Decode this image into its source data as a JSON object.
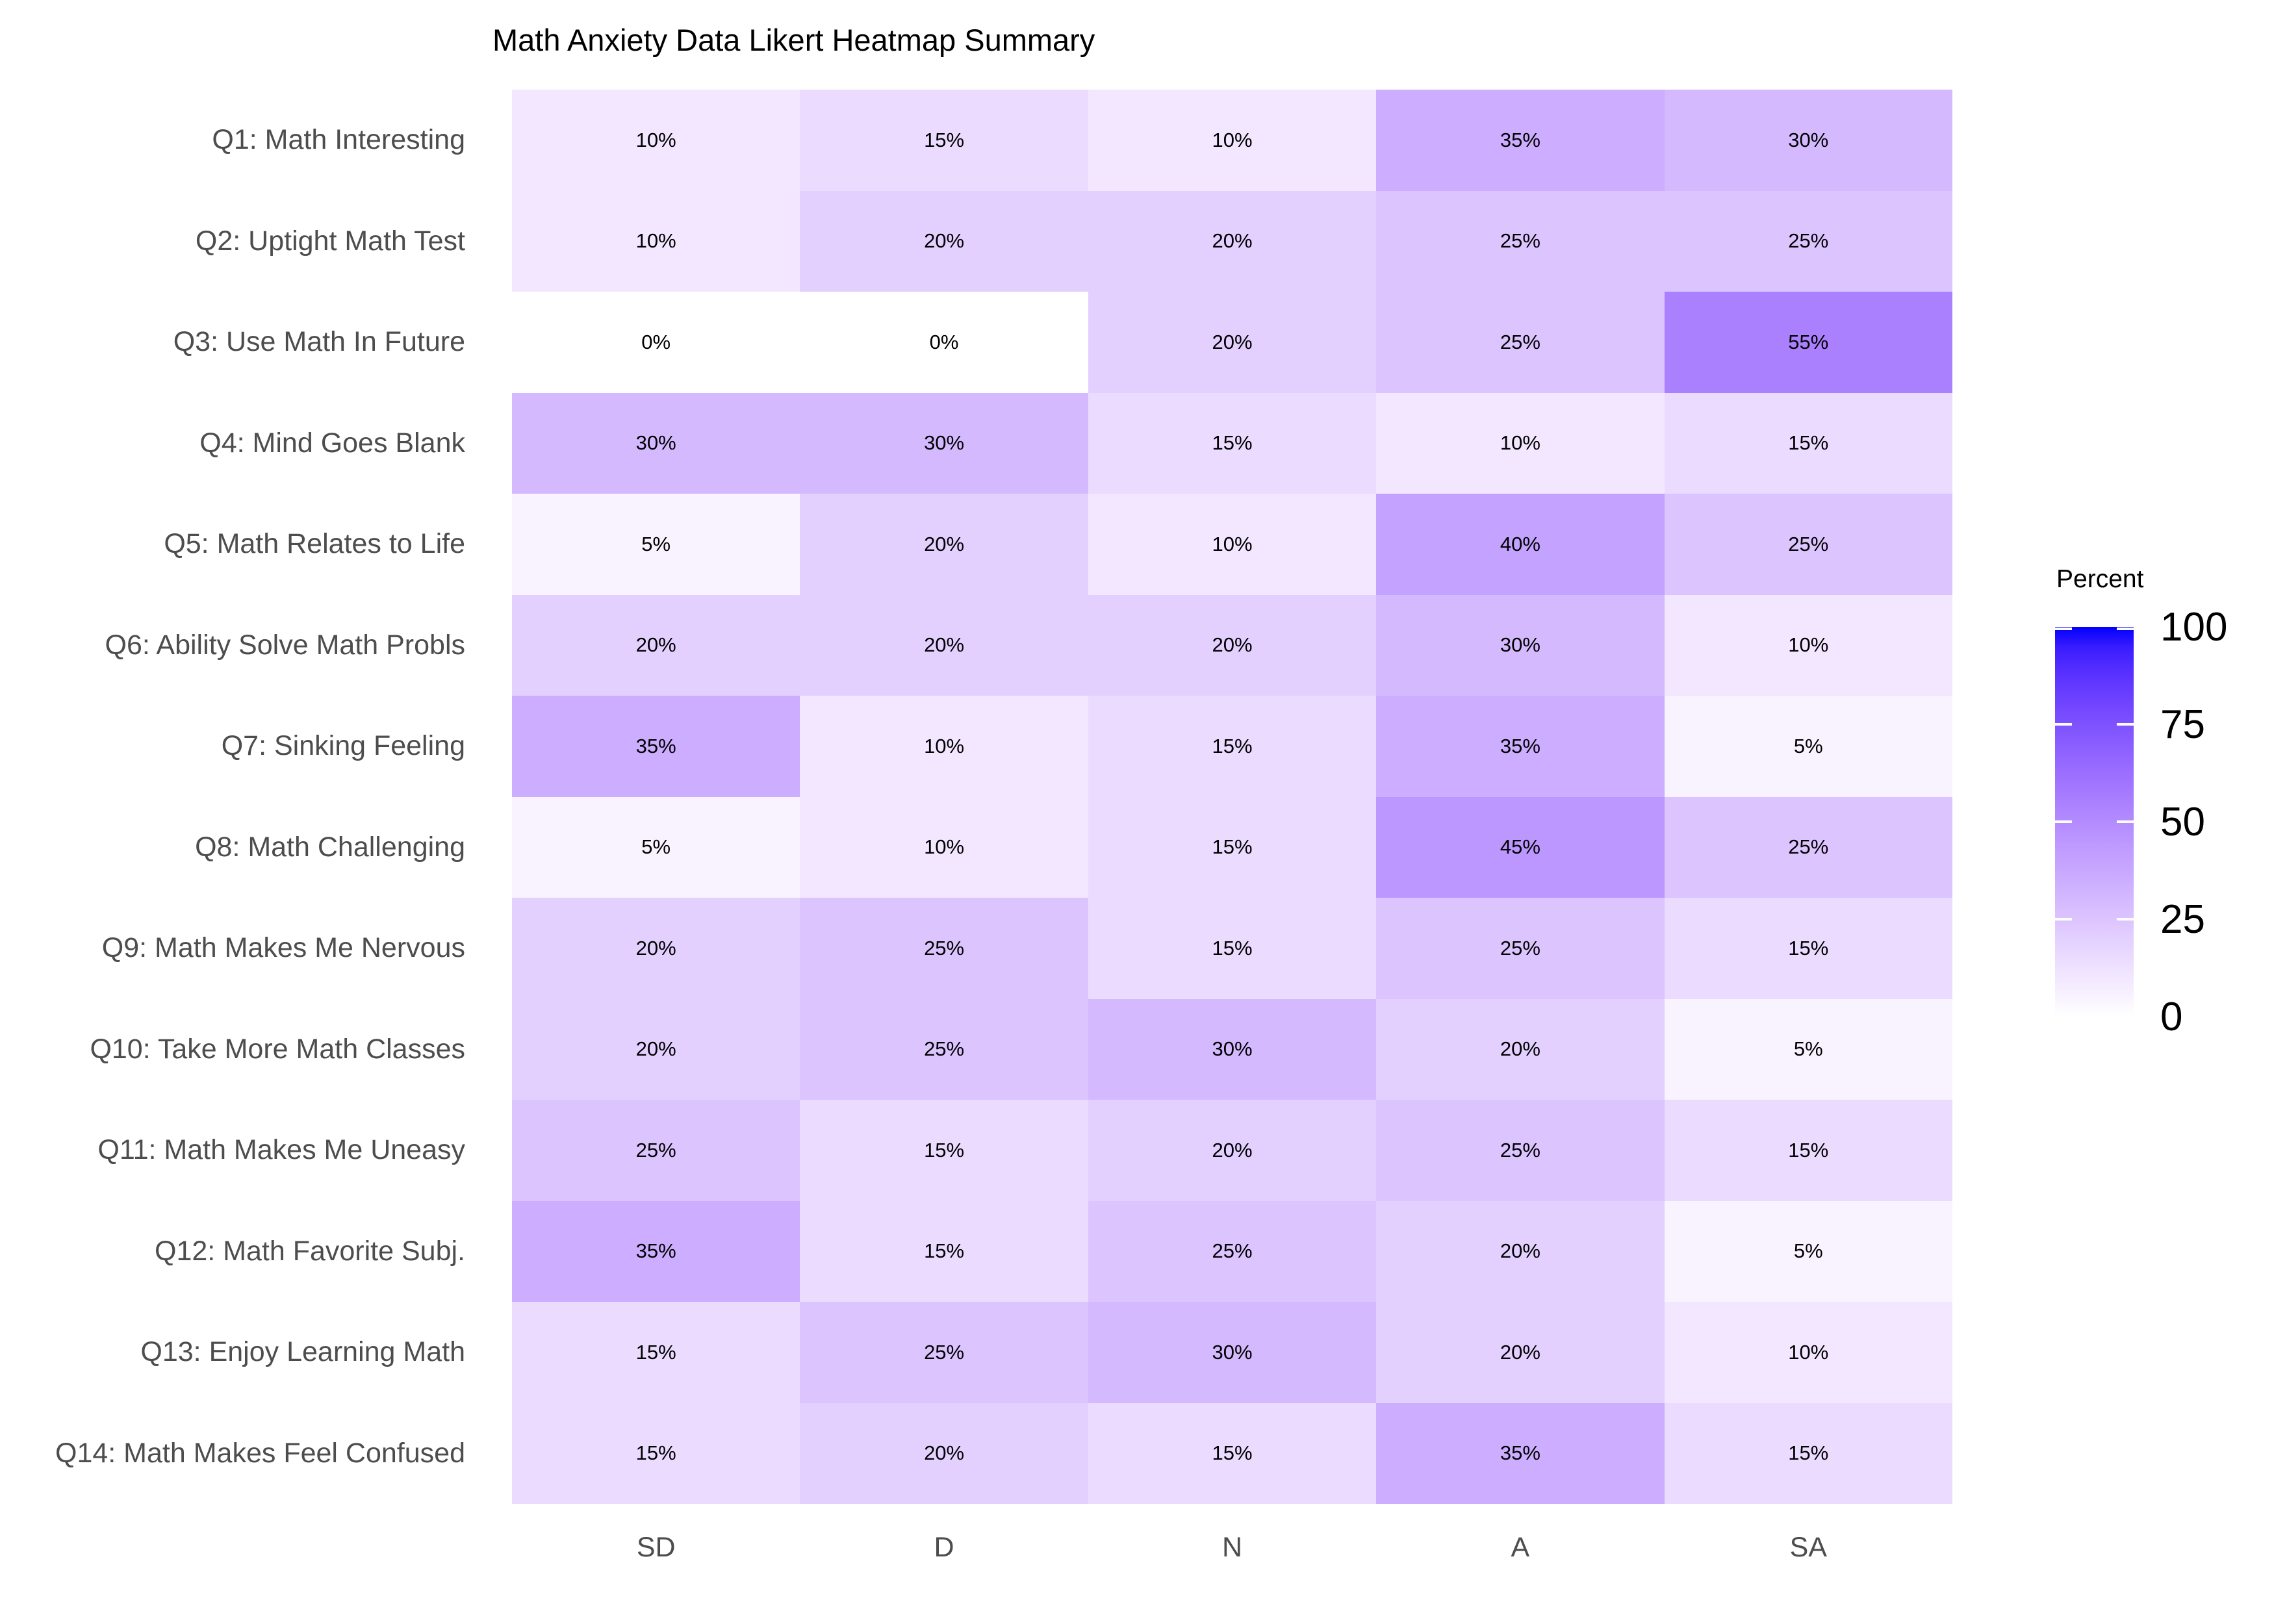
{
  "title": "Math Anxiety Data Likert Heatmap Summary",
  "legend": {
    "title": "Percent",
    "tick_values": [
      100,
      75,
      50,
      25,
      0
    ],
    "low_color": "#FFFFFF",
    "high_color": "#0000FF"
  },
  "chart_data": {
    "type": "heatmap",
    "title": "Math Anxiety Data Likert Heatmap Summary",
    "x_categories": [
      "SD",
      "D",
      "N",
      "A",
      "SA"
    ],
    "y_categories": [
      "Q1: Math Interesting",
      "Q2: Uptight Math Test",
      "Q3: Use Math In Future",
      "Q4: Mind Goes Blank",
      "Q5: Math Relates to Life",
      "Q6: Ability Solve Math Probls",
      "Q7: Sinking Feeling",
      "Q8: Math Challenging",
      "Q9: Math Makes Me Nervous",
      "Q10: Take More Math Classes",
      "Q11: Math Makes Me Uneasy",
      "Q12: Math Favorite Subj.",
      "Q13: Enjoy Learning Math",
      "Q14: Math Makes Feel Confused"
    ],
    "values_percent": [
      [
        10,
        15,
        10,
        35,
        30
      ],
      [
        10,
        20,
        20,
        25,
        25
      ],
      [
        0,
        0,
        20,
        25,
        55
      ],
      [
        30,
        30,
        15,
        10,
        15
      ],
      [
        5,
        20,
        10,
        40,
        25
      ],
      [
        20,
        20,
        20,
        30,
        10
      ],
      [
        35,
        10,
        15,
        35,
        5
      ],
      [
        5,
        10,
        15,
        45,
        25
      ],
      [
        20,
        25,
        15,
        25,
        15
      ],
      [
        20,
        25,
        30,
        20,
        5
      ],
      [
        25,
        15,
        20,
        25,
        15
      ],
      [
        35,
        15,
        25,
        20,
        5
      ],
      [
        15,
        25,
        30,
        20,
        10
      ],
      [
        15,
        20,
        15,
        35,
        15
      ]
    ],
    "cell_label_suffix": "%",
    "colorscale": {
      "type": "gradient",
      "low": "#FFFFFF",
      "high": "#0000FF",
      "space": "Lab",
      "domain": [
        0,
        100
      ]
    },
    "legend_title": "Percent",
    "legend_ticks": [
      100,
      75,
      50,
      25,
      0
    ],
    "legend_position": "right",
    "grid": "off"
  }
}
